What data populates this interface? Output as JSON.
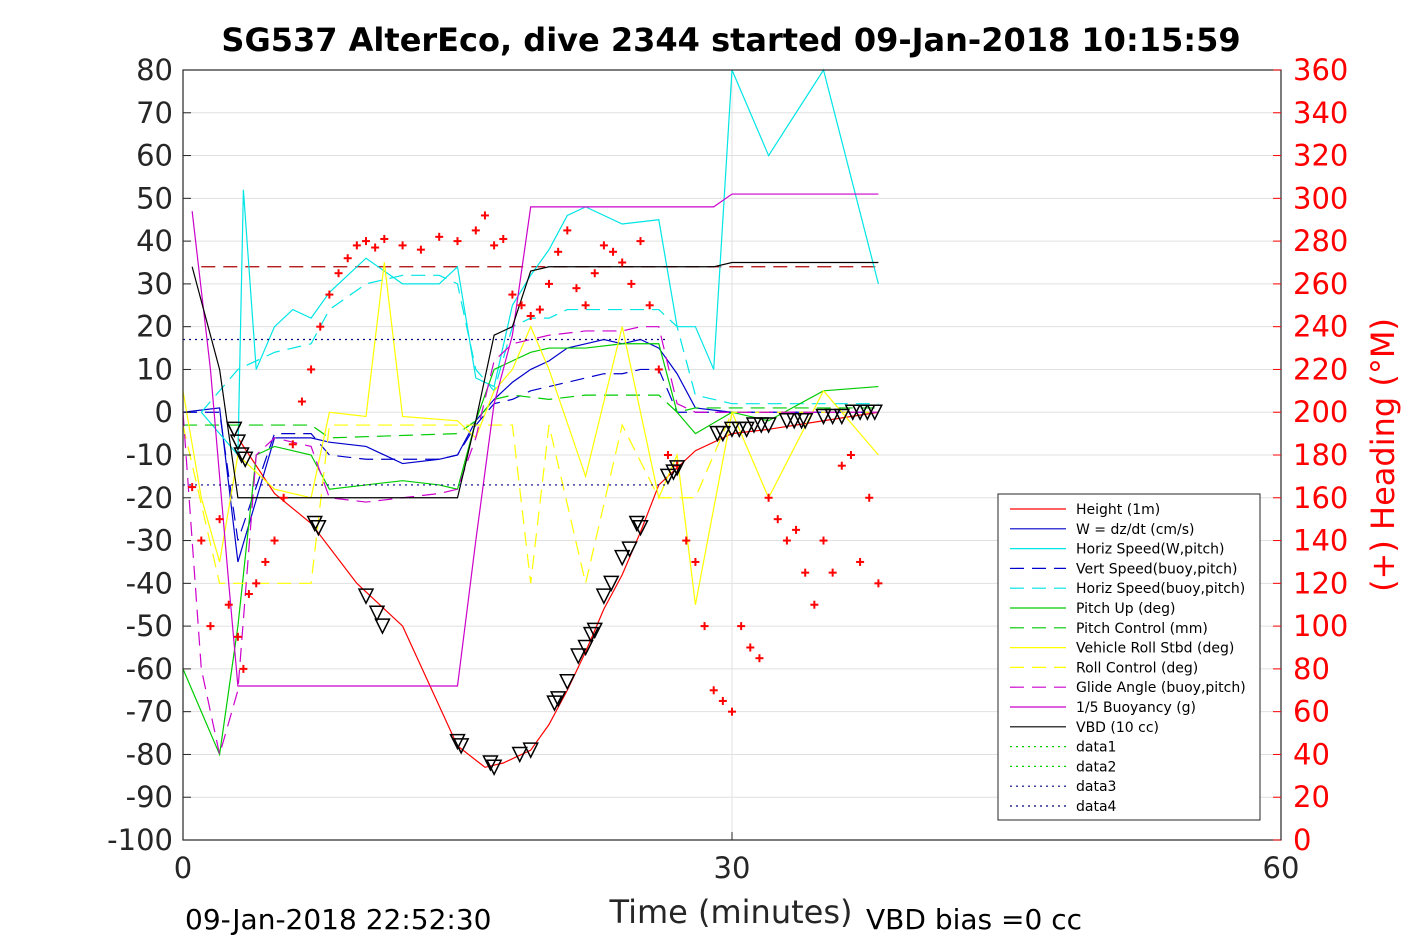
{
  "chart_data": {
    "type": "line",
    "title": "SG537 AlterEco, dive 2344 started 09-Jan-2018 10:15:59",
    "xlabel": "Time (minutes)",
    "ylabel": "",
    "y2label": "(+) Heading (°M)",
    "xlim": [
      0,
      60
    ],
    "ylim": [
      -100,
      80
    ],
    "y2lim": [
      0,
      360
    ],
    "x_ticks": [
      "0",
      "30",
      "60"
    ],
    "y_ticks": [
      "80",
      "70",
      "60",
      "50",
      "40",
      "30",
      "20",
      "10",
      "0",
      "-10",
      "-20",
      "-30",
      "-40",
      "-50",
      "-60",
      "-70",
      "-80",
      "-90",
      "-100"
    ],
    "y2_ticks": [
      "360",
      "340",
      "320",
      "300",
      "280",
      "260",
      "240",
      "220",
      "200",
      "180",
      "160",
      "140",
      "120",
      "100",
      "80",
      "60",
      "40",
      "20",
      "0"
    ],
    "grid": true,
    "legend_position": "bottom-right",
    "footer_left": "09-Jan-2018 22:52:30",
    "footer_right": "VBD bias =0 cc",
    "colors": {
      "height": "#ff0000",
      "w": "#0000cc",
      "horiz_w": "#00e5e5",
      "vert_buoy": "#0000cc",
      "horiz_buoy": "#00e5e5",
      "pitch_up": "#00cc00",
      "pitch_control": "#00cc00",
      "roll": "#ffff00",
      "roll_control": "#ffff00",
      "glide": "#cc00cc",
      "buoyancy": "#cc00cc",
      "vbd": "#000000",
      "heading": "#ff0000"
    },
    "series": [
      {
        "name": "Height (1m)",
        "style": "solid",
        "color": "#ff0000",
        "x": [
          3,
          5,
          7,
          9.5,
          12,
          15,
          16.5,
          17.5,
          19,
          20,
          21,
          22,
          23,
          24,
          25,
          26,
          27,
          28,
          30,
          32,
          35,
          38
        ],
        "y": [
          -6,
          -19,
          -26,
          -40,
          -50,
          -78,
          -83,
          -82,
          -79,
          -73,
          -65,
          -56,
          -46,
          -38,
          -28,
          -17,
          -13,
          -9,
          -5,
          -4,
          -2,
          0
        ]
      },
      {
        "name": "W = dz/dt (cm/s)",
        "style": "solid",
        "color": "#0000cc",
        "x": [
          0,
          2,
          3,
          5,
          7,
          8,
          10,
          12,
          14,
          15,
          16,
          17,
          18,
          19,
          20,
          21,
          22,
          23,
          24,
          25,
          26,
          27,
          28,
          30,
          32,
          35,
          38
        ],
        "y": [
          0,
          1,
          -35,
          -6,
          -6,
          -7,
          -8,
          -12,
          -11,
          -10,
          -2,
          3,
          7,
          10,
          12,
          15,
          16,
          17,
          16,
          17,
          15,
          9,
          1,
          0,
          0,
          0,
          0
        ]
      },
      {
        "name": "Horiz Speed(W,pitch)",
        "style": "solid",
        "color": "#00e5e5",
        "x": [
          1,
          2,
          3,
          3.3,
          4,
          5,
          6,
          7,
          8,
          10,
          12,
          14,
          15,
          16,
          17,
          18,
          19,
          20,
          21,
          22,
          24,
          26,
          27,
          28,
          29,
          30,
          32,
          35,
          38
        ],
        "y": [
          0,
          -5,
          -10,
          52,
          10,
          20,
          24,
          22,
          28,
          36,
          30,
          30,
          34,
          8,
          6,
          25,
          32,
          38,
          46,
          48,
          44,
          45,
          20,
          20,
          10,
          80,
          60,
          80,
          30
        ]
      },
      {
        "name": "Vert Speed(buoy,pitch)",
        "style": "dashed",
        "color": "#0000cc",
        "x": [
          0,
          2,
          3,
          5,
          7,
          8,
          10,
          12,
          14,
          15,
          16,
          17,
          18,
          19,
          20,
          21,
          22,
          23,
          24,
          25,
          26,
          27,
          28,
          30,
          32,
          35,
          38
        ],
        "y": [
          0,
          0,
          -30,
          -5,
          -5,
          -10,
          -11,
          -11,
          -11,
          -10,
          -3,
          2,
          3,
          5,
          6,
          7,
          8,
          9,
          9,
          10,
          10,
          0,
          0,
          0,
          0,
          0,
          0
        ]
      },
      {
        "name": "Horiz Speed(buoy,pitch)",
        "style": "dashed",
        "color": "#00e5e5",
        "x": [
          1,
          3,
          5,
          7,
          8,
          10,
          12,
          14,
          15,
          16,
          17,
          18,
          19,
          20,
          21,
          22,
          24,
          26,
          27,
          28,
          30,
          32,
          35,
          38
        ],
        "y": [
          0,
          10,
          14,
          16,
          24,
          30,
          32,
          32,
          30,
          10,
          5,
          20,
          22,
          22,
          24,
          24,
          24,
          24,
          20,
          4,
          2,
          2,
          2,
          2
        ]
      },
      {
        "name": "Pitch Up (deg)",
        "style": "solid",
        "color": "#00cc00",
        "x": [
          0,
          1,
          2,
          3,
          4,
          5,
          7,
          8,
          10,
          12,
          14,
          15,
          16,
          17,
          18,
          19,
          20,
          21,
          22,
          24,
          26,
          27,
          28,
          30,
          32,
          35,
          38
        ],
        "y": [
          -60,
          -70,
          -80,
          -50,
          -10,
          -8,
          -10,
          -18,
          -17,
          -16,
          -17,
          -18,
          -2,
          10,
          12,
          14,
          15,
          15,
          15,
          16,
          16,
          0,
          -5,
          0,
          -2,
          5,
          6
        ]
      },
      {
        "name": "Pitch Control (mm)",
        "style": "dashed",
        "color": "#00cc00",
        "x": [
          0,
          3,
          7,
          8,
          15,
          16,
          17,
          18,
          20,
          22,
          25,
          26,
          27,
          28,
          30,
          32,
          38
        ],
        "y": [
          -3,
          -3,
          -3,
          -6,
          -5,
          -2,
          3,
          4,
          3,
          4,
          4,
          4,
          0,
          1,
          1,
          1,
          1
        ]
      },
      {
        "name": "Vehicle Roll Stbd (deg)",
        "style": "solid",
        "color": "#ffff00",
        "x": [
          0,
          1,
          2,
          3,
          5,
          7,
          8,
          10,
          11,
          12,
          15,
          16,
          17,
          18,
          19,
          20,
          22,
          24,
          26,
          27,
          28,
          30,
          32,
          35,
          38
        ],
        "y": [
          5,
          -20,
          -35,
          -10,
          -18,
          -20,
          0,
          -1,
          35,
          -1,
          -2,
          -6,
          5,
          10,
          20,
          10,
          -15,
          20,
          -20,
          -10,
          -45,
          0,
          -20,
          5,
          -10
        ]
      },
      {
        "name": "Roll Control (deg)",
        "style": "dashed",
        "color": "#ffff00",
        "x": [
          0,
          2,
          4,
          6,
          7,
          8,
          12,
          14,
          15,
          16,
          18,
          19,
          20,
          22,
          24,
          26,
          28,
          30,
          32,
          35,
          38
        ],
        "y": [
          -3,
          -40,
          -40,
          -40,
          -40,
          -3,
          -3,
          -3,
          -3,
          -3,
          -3,
          -40,
          -3,
          -40,
          -3,
          -20,
          -20,
          0,
          0,
          0,
          0
        ]
      },
      {
        "name": "Glide Angle (buoy,pitch)",
        "style": "dashed",
        "color": "#cc00cc",
        "x": [
          0,
          1,
          2,
          3,
          4,
          5,
          7,
          8,
          10,
          12,
          14,
          15,
          16,
          17,
          18,
          19,
          20,
          22,
          24,
          25,
          26,
          27,
          28,
          30,
          32,
          38
        ],
        "y": [
          0,
          -60,
          -80,
          -65,
          -10,
          -6,
          -8,
          -20,
          -21,
          -20,
          -19,
          -18,
          -6,
          12,
          16,
          17,
          18,
          19,
          19,
          20,
          20,
          2,
          0,
          0,
          0,
          0
        ]
      },
      {
        "name": "1/5 Buoyancy (g)",
        "style": "solid",
        "color": "#cc00cc",
        "x": [
          0.5,
          1.5,
          2.5,
          3,
          5,
          7,
          10,
          14,
          15,
          16,
          17,
          18,
          19,
          20,
          21,
          25,
          26,
          27,
          28,
          29,
          30,
          35,
          38
        ],
        "y": [
          47,
          10,
          -40,
          -64,
          -64,
          -64,
          -64,
          -64,
          -64,
          -30,
          2,
          18,
          48,
          48,
          48,
          48,
          48,
          48,
          48,
          48,
          51,
          51,
          51
        ]
      },
      {
        "name": "VBD (10 cc)",
        "style": "solid",
        "color": "#000000",
        "x": [
          0.5,
          2,
          3,
          5,
          7,
          14,
          15,
          16,
          17,
          18,
          19,
          20,
          25,
          28,
          29,
          30,
          35,
          38
        ],
        "y": [
          34,
          10,
          -20,
          -20,
          -20,
          -20,
          -20,
          -2,
          18,
          20,
          33,
          34,
          34,
          34,
          34,
          35,
          35,
          35
        ]
      },
      {
        "name": "data1",
        "style": "dotted",
        "color": "#00cc00",
        "x": [],
        "y": []
      },
      {
        "name": "data2",
        "style": "dotted",
        "color": "#00cc00",
        "x": [],
        "y": []
      },
      {
        "name": "data3",
        "style": "dotted",
        "color": "#000080",
        "x": [
          0,
          26.5
        ],
        "y": [
          -17,
          -17
        ]
      },
      {
        "name": "data4",
        "style": "dotted",
        "color": "#000080",
        "x": [
          0,
          26.5
        ],
        "y": [
          17,
          17
        ]
      }
    ],
    "reference_lines": [
      {
        "style": "dashed",
        "color": "#aa0000",
        "axis": "y2",
        "x": [
          1,
          38
        ],
        "y": [
          268,
          268
        ]
      }
    ],
    "heading_points": {
      "axis": "y2",
      "x": [
        0.5,
        1,
        1.5,
        2,
        2.5,
        3,
        3.3,
        3.6,
        4,
        4.5,
        5,
        5.5,
        6,
        6.5,
        7,
        7.5,
        8,
        8.5,
        9,
        9.5,
        10,
        10.5,
        11,
        12,
        13,
        14,
        15,
        16,
        16.5,
        17,
        17.5,
        18,
        18.5,
        19,
        19.5,
        20,
        20.5,
        21,
        21.5,
        22,
        22.5,
        23,
        23.5,
        24,
        24.5,
        25,
        25.5,
        26,
        26.5,
        27,
        27.5,
        28,
        28.5,
        29,
        29.5,
        30,
        30.5,
        31,
        31.5,
        32,
        32.5,
        33,
        33.5,
        34,
        34.5,
        35,
        35.5,
        36,
        36.5,
        37,
        37.5,
        38
      ],
      "y": [
        165,
        140,
        100,
        150,
        110,
        95,
        80,
        115,
        120,
        130,
        140,
        160,
        185,
        205,
        220,
        240,
        255,
        265,
        272,
        278,
        280,
        277,
        281,
        278,
        276,
        282,
        280,
        285,
        292,
        278,
        281,
        255,
        250,
        245,
        248,
        260,
        275,
        285,
        258,
        250,
        265,
        278,
        275,
        270,
        260,
        280,
        250,
        220,
        180,
        175,
        140,
        130,
        100,
        70,
        65,
        60,
        100,
        90,
        85,
        160,
        150,
        140,
        145,
        125,
        110,
        140,
        125,
        175,
        180,
        130,
        160,
        120
      ]
    },
    "marker_points": {
      "x": [
        2.8,
        3,
        3.2,
        3.4,
        7.2,
        7.4,
        10,
        10.6,
        10.9,
        15,
        15.2,
        16.8,
        17,
        18.4,
        19,
        20.3,
        20.5,
        21,
        21.6,
        22,
        22.3,
        22.5,
        23,
        23.4,
        24,
        24.4,
        24.8,
        25,
        26.5,
        26.8,
        27,
        29.2,
        29.5,
        30,
        30.4,
        30.8,
        31.2,
        31.6,
        32,
        33,
        33.4,
        33.8,
        34,
        35,
        35.5,
        36,
        36.6,
        37,
        37.4,
        37.8
      ],
      "y": [
        -4,
        -7,
        -10,
        -11,
        -26,
        -27,
        -43,
        -47,
        -50,
        -77,
        -78,
        -82,
        -83,
        -80,
        -79,
        -68,
        -67,
        -63,
        -57,
        -55,
        -52,
        -51,
        -43,
        -40,
        -34,
        -32,
        -26,
        -27,
        -15,
        -14,
        -13,
        -5,
        -5,
        -4,
        -4,
        -4,
        -3,
        -3,
        -3,
        -2,
        -2,
        -2,
        -2,
        -1,
        -1,
        -1,
        0,
        0,
        0,
        0
      ]
    },
    "legend": [
      {
        "label": "Height (1m)",
        "color": "#ff0000",
        "style": "solid"
      },
      {
        "label": "W = dz/dt (cm/s)",
        "color": "#0000cc",
        "style": "solid"
      },
      {
        "label": "Horiz Speed(W,pitch)",
        "color": "#00e5e5",
        "style": "solid"
      },
      {
        "label": "Vert Speed(buoy,pitch)",
        "color": "#0000cc",
        "style": "dashed"
      },
      {
        "label": "Horiz Speed(buoy,pitch)",
        "color": "#00e5e5",
        "style": "dashed"
      },
      {
        "label": "Pitch Up (deg)",
        "color": "#00cc00",
        "style": "solid"
      },
      {
        "label": "Pitch Control (mm)",
        "color": "#00cc00",
        "style": "dashed"
      },
      {
        "label": "Vehicle Roll Stbd (deg)",
        "color": "#ffff00",
        "style": "solid"
      },
      {
        "label": "Roll Control (deg)",
        "color": "#ffff00",
        "style": "dashed"
      },
      {
        "label": "Glide Angle (buoy,pitch)",
        "color": "#cc00cc",
        "style": "dashed"
      },
      {
        "label": "1/5 Buoyancy (g)",
        "color": "#cc00cc",
        "style": "solid"
      },
      {
        "label": "VBD (10 cc)",
        "color": "#000000",
        "style": "solid"
      },
      {
        "label": "data1",
        "color": "#00cc00",
        "style": "dotted"
      },
      {
        "label": "data2",
        "color": "#00cc00",
        "style": "dotted"
      },
      {
        "label": "data3",
        "color": "#000080",
        "style": "dotted"
      },
      {
        "label": "data4",
        "color": "#000080",
        "style": "dotted"
      }
    ]
  }
}
